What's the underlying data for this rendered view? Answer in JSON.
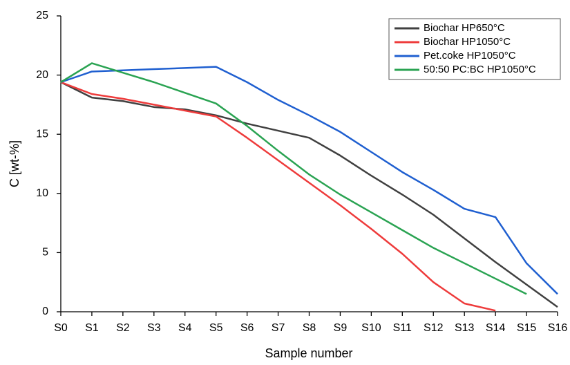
{
  "chart_data": {
    "type": "line",
    "x_label": "Sample number",
    "y_label": "C [wt-%]",
    "categories": [
      "S0",
      "S1",
      "S2",
      "S3",
      "S4",
      "S5",
      "S6",
      "S7",
      "S8",
      "S9",
      "S10",
      "S11",
      "S12",
      "S13",
      "S14",
      "S15",
      "S16"
    ],
    "series": [
      {
        "name": "Biochar HP650°C",
        "color": "#404040",
        "values": [
          19.4,
          18.1,
          17.8,
          17.3,
          17.1,
          16.6,
          15.9,
          15.3,
          14.7,
          13.2,
          11.5,
          9.9,
          8.2,
          6.2,
          4.2,
          2.3,
          0.4
        ]
      },
      {
        "name": "Biochar HP1050°C",
        "color": "#ee3b3b",
        "values": [
          19.4,
          18.4,
          18.0,
          17.5,
          17.0,
          16.5,
          14.7,
          12.8,
          10.9,
          9.0,
          7.0,
          4.9,
          2.5,
          0.7,
          0.1,
          null,
          null
        ]
      },
      {
        "name": "Pet.coke HP1050°C",
        "color": "#1f5fd0",
        "values": [
          19.4,
          20.3,
          20.4,
          20.5,
          20.6,
          20.7,
          19.4,
          17.9,
          16.6,
          15.2,
          13.5,
          11.8,
          10.3,
          8.7,
          8.0,
          4.1,
          1.5
        ]
      },
      {
        "name": "50:50 PC:BC HP1050°C",
        "color": "#2aa352",
        "values": [
          19.4,
          21.0,
          20.2,
          19.4,
          18.5,
          17.6,
          15.7,
          13.6,
          11.6,
          9.9,
          8.4,
          6.9,
          5.4,
          4.1,
          2.8,
          1.5,
          null
        ]
      }
    ],
    "ylim": [
      0,
      25
    ],
    "yticks": [
      0,
      5,
      10,
      15,
      20,
      25
    ],
    "grid": false,
    "legend": "top-right"
  }
}
